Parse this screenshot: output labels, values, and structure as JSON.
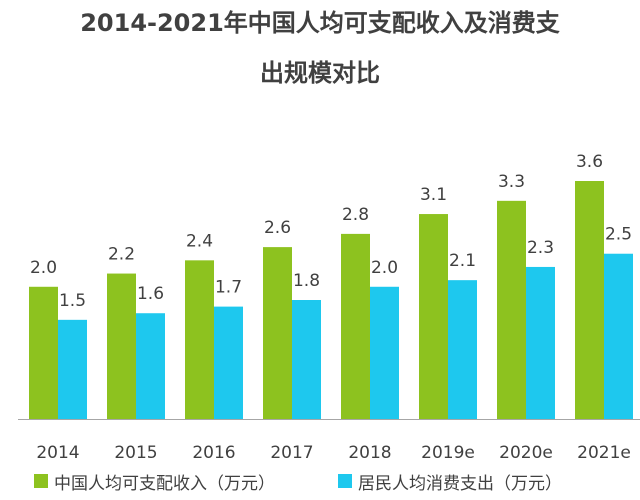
{
  "title_line1": "2014-2021年中国人均可支配收入及消费支",
  "title_line2": "出规模对比",
  "chart_data": {
    "type": "bar",
    "title": "2014-2021年中国人均可支配收入及消费支出规模对比",
    "categories": [
      "2014",
      "2015",
      "2016",
      "2017",
      "2018",
      "2019e",
      "2020e",
      "2021e"
    ],
    "series": [
      {
        "name": "中国人均可支配收入（万元）",
        "color": "#8DC21F",
        "values": [
          2.0,
          2.2,
          2.4,
          2.6,
          2.8,
          3.1,
          3.3,
          3.6
        ]
      },
      {
        "name": "居民人均消费支出（万元）",
        "color": "#1EC8EE",
        "values": [
          1.5,
          1.6,
          1.7,
          1.8,
          2.0,
          2.1,
          2.3,
          2.5
        ]
      }
    ],
    "xlabel": "",
    "ylabel": "",
    "ylim": [
      0,
      3.6
    ],
    "grid": false,
    "legend_position": "bottom"
  }
}
